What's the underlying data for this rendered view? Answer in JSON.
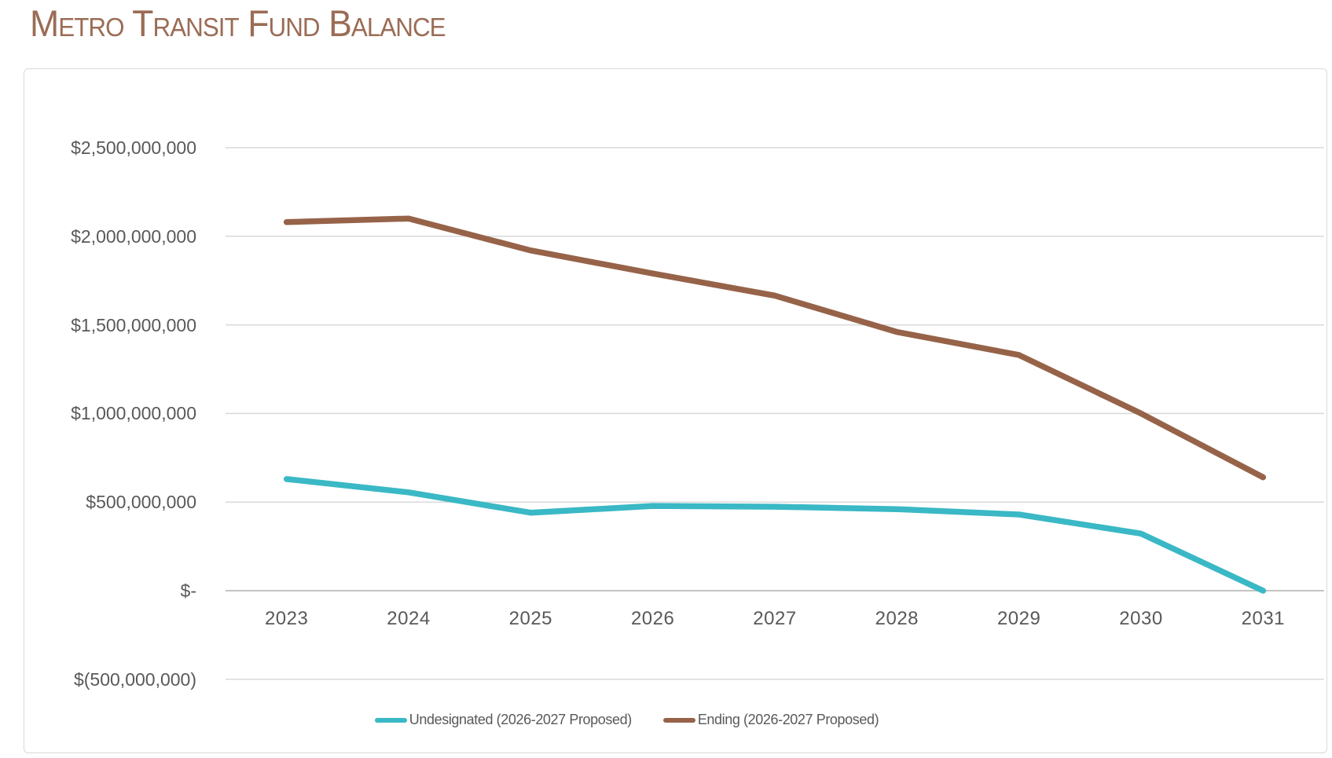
{
  "title": "Metro Transit Fund Balance",
  "colors": {
    "title_text": "#9b6c55",
    "axis_text": "#595959",
    "gridline": "#d9d9d9",
    "zero_line": "#c4c4c4",
    "chart_border": "#d9d9d9",
    "background": "#ffffff",
    "undesignated_line": "#3ab8c5",
    "ending_line": "#966349"
  },
  "chart_data": {
    "type": "line",
    "title": "Metro Transit Fund Balance",
    "categories": [
      "2023",
      "2024",
      "2025",
      "2026",
      "2027",
      "2028",
      "2029",
      "2030",
      "2031"
    ],
    "series": [
      {
        "name": "Undesignated (2026-2027 Proposed)",
        "color": "#3ab8c5",
        "values": [
          630000000,
          555000000,
          440000000,
          478000000,
          474000000,
          460000000,
          430000000,
          322000000,
          0
        ]
      },
      {
        "name": "Ending (2026-2027 Proposed)",
        "color": "#966349",
        "values": [
          2080000000,
          2100000000,
          1920000000,
          1790000000,
          1665000000,
          1460000000,
          1330000000,
          1000000000,
          640000000
        ]
      }
    ],
    "y_axis": {
      "min": -500000000,
      "max": 2500000000,
      "tick_step": 500000000,
      "ticks": [
        {
          "label": "$2,500,000,000",
          "value": 2500000000
        },
        {
          "label": "$2,000,000,000",
          "value": 2000000000
        },
        {
          "label": "$1,500,000,000",
          "value": 1500000000
        },
        {
          "label": "$1,000,000,000",
          "value": 1000000000
        },
        {
          "label": "$500,000,000",
          "value": 500000000
        },
        {
          "label": "$-",
          "value": 0
        },
        {
          "label": "$(500,000,000)",
          "value": -500000000
        }
      ]
    },
    "x_axis": {
      "label": "",
      "type": "category"
    },
    "grid": true,
    "legend_position": "bottom"
  }
}
